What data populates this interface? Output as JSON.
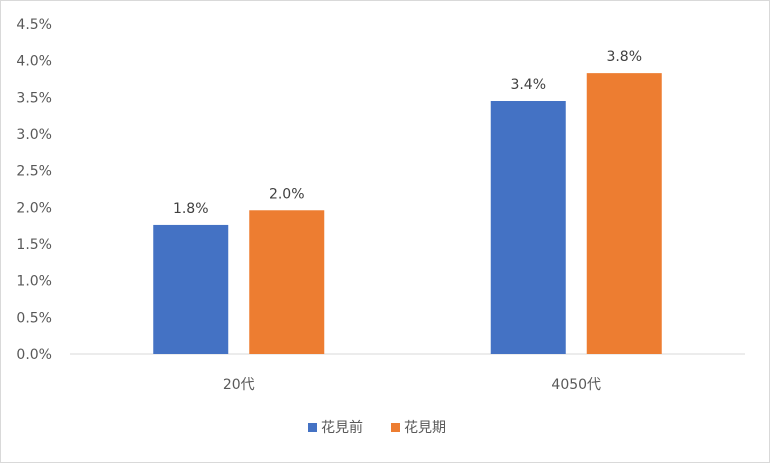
{
  "chart_data": {
    "type": "bar",
    "categories": [
      "20代",
      "4050代"
    ],
    "series": [
      {
        "name": "花見前",
        "values": [
          1.76,
          3.45
        ],
        "labels": [
          "1.8%",
          "3.4%"
        ]
      },
      {
        "name": "花見期",
        "values": [
          1.96,
          3.83
        ],
        "labels": [
          "2.0%",
          "3.8%"
        ]
      }
    ],
    "ylim": [
      0,
      4.5
    ],
    "y_ticks": [
      "0.0%",
      "0.5%",
      "1.0%",
      "1.5%",
      "2.0%",
      "2.5%",
      "3.0%",
      "3.5%",
      "4.0%",
      "4.5%"
    ],
    "title": "",
    "xlabel": "",
    "ylabel": "",
    "grid": false,
    "legend_position": "bottom",
    "colors": {
      "花見前": "#4472c4",
      "花見期": "#ed7d31",
      "axis": "#d9d9d9"
    }
  }
}
